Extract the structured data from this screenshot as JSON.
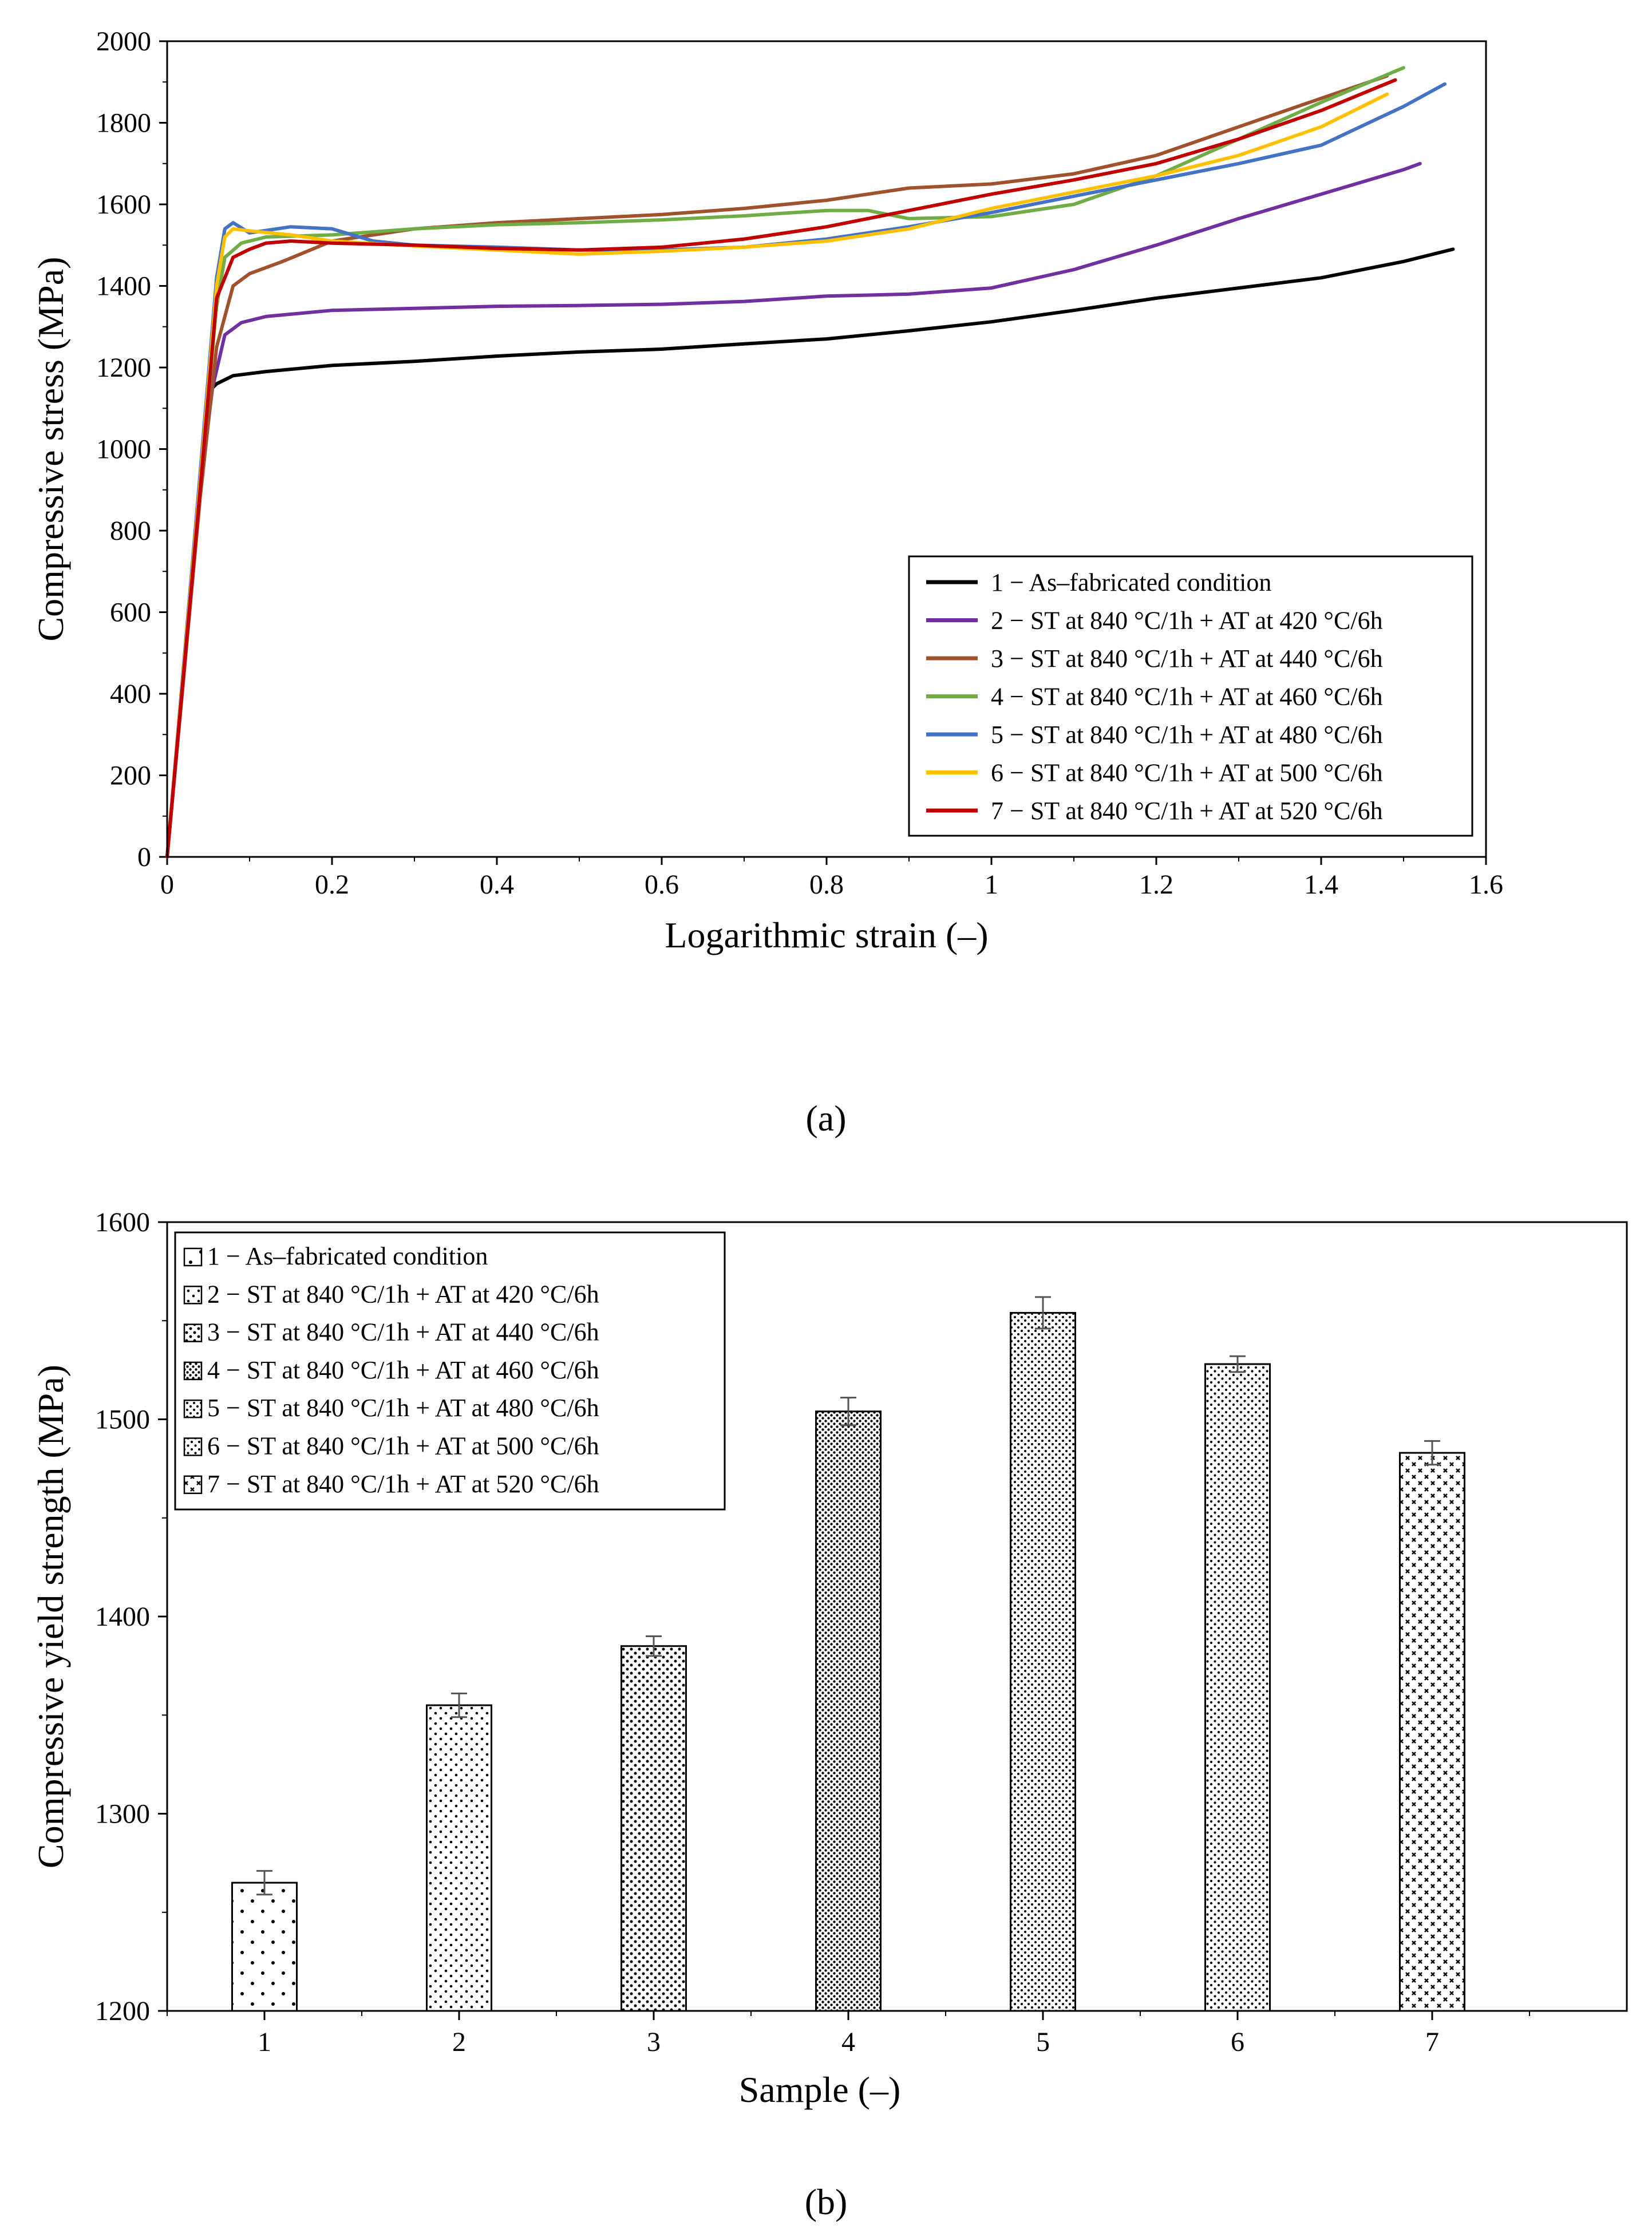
{
  "chart_data": [
    {
      "type": "line",
      "panel_label": "(a)",
      "xlabel": "Logarithmic strain (–)",
      "ylabel": "Compressive stress (MPa)",
      "xlim": [
        0,
        1.6
      ],
      "ylim": [
        0,
        2000
      ],
      "xticks": [
        0,
        0.2,
        0.4,
        0.6,
        0.8,
        1,
        1.2,
        1.4,
        1.6
      ],
      "xtick_labels": [
        "0",
        "0.2",
        "0.4",
        "0.6",
        "0.8",
        "1",
        "1.2",
        "1.4",
        "1.6"
      ],
      "yticks": [
        0,
        200,
        400,
        600,
        800,
        1000,
        1200,
        1400,
        1600,
        1800,
        2000
      ],
      "ytick_labels": [
        "0",
        "200",
        "400",
        "600",
        "800",
        "1000",
        "1200",
        "1400",
        "1600",
        "1800",
        "2000"
      ],
      "legend_position": "bottom-right",
      "series": [
        {
          "name": "1 − As–fabricated condition",
          "color": "#000000",
          "x": [
            0,
            0.02,
            0.04,
            0.05,
            0.06,
            0.08,
            0.12,
            0.2,
            0.3,
            0.4,
            0.5,
            0.6,
            0.7,
            0.8,
            0.9,
            1.0,
            1.1,
            1.2,
            1.3,
            1.4,
            1.5,
            1.56
          ],
          "y": [
            0,
            450,
            920,
            1140,
            1160,
            1180,
            1190,
            1205,
            1215,
            1228,
            1238,
            1245,
            1258,
            1270,
            1290,
            1312,
            1340,
            1370,
            1395,
            1420,
            1460,
            1490
          ]
        },
        {
          "name": "2 − ST at 840 °C/1h + AT at 420 °C/6h",
          "color": "#7030a0",
          "x": [
            0,
            0.02,
            0.04,
            0.055,
            0.07,
            0.09,
            0.12,
            0.2,
            0.3,
            0.4,
            0.5,
            0.6,
            0.7,
            0.8,
            0.9,
            1.0,
            1.1,
            1.2,
            1.3,
            1.4,
            1.5,
            1.52
          ],
          "y": [
            0,
            440,
            900,
            1150,
            1280,
            1310,
            1325,
            1340,
            1345,
            1350,
            1352,
            1355,
            1362,
            1375,
            1380,
            1395,
            1440,
            1500,
            1565,
            1625,
            1685,
            1700
          ]
        },
        {
          "name": "3 − ST at 840 °C/1h + AT at 440 °C/6h",
          "color": "#a0522d",
          "x": [
            0,
            0.02,
            0.04,
            0.06,
            0.08,
            0.1,
            0.14,
            0.2,
            0.3,
            0.4,
            0.5,
            0.6,
            0.7,
            0.8,
            0.9,
            1.0,
            1.1,
            1.2,
            1.3,
            1.4,
            1.48
          ],
          "y": [
            0,
            440,
            880,
            1250,
            1400,
            1430,
            1460,
            1510,
            1540,
            1555,
            1565,
            1575,
            1590,
            1610,
            1640,
            1650,
            1675,
            1720,
            1790,
            1860,
            1915
          ]
        },
        {
          "name": "4 − ST at 840 °C/1h + AT at 460 °C/6h",
          "color": "#70ad47",
          "x": [
            0,
            0.02,
            0.04,
            0.06,
            0.07,
            0.09,
            0.12,
            0.2,
            0.3,
            0.4,
            0.5,
            0.6,
            0.7,
            0.8,
            0.85,
            0.9,
            1.0,
            1.1,
            1.2,
            1.3,
            1.4,
            1.5
          ],
          "y": [
            0,
            460,
            920,
            1350,
            1470,
            1505,
            1520,
            1525,
            1540,
            1550,
            1555,
            1562,
            1572,
            1585,
            1585,
            1565,
            1570,
            1600,
            1670,
            1760,
            1850,
            1935
          ]
        },
        {
          "name": "5 − ST at 840 °C/1h + AT at 480 °C/6h",
          "color": "#4472c4",
          "x": [
            0,
            0.02,
            0.04,
            0.06,
            0.07,
            0.08,
            0.1,
            0.15,
            0.2,
            0.25,
            0.3,
            0.4,
            0.5,
            0.6,
            0.7,
            0.8,
            0.9,
            1.0,
            1.1,
            1.2,
            1.3,
            1.4,
            1.5,
            1.55
          ],
          "y": [
            0,
            470,
            940,
            1420,
            1540,
            1555,
            1530,
            1545,
            1540,
            1510,
            1500,
            1495,
            1488,
            1488,
            1495,
            1515,
            1545,
            1580,
            1620,
            1660,
            1700,
            1745,
            1840,
            1895
          ]
        },
        {
          "name": "6 − ST at 840 °C/1h + AT at 500 °C/6h",
          "color": "#ffc000",
          "x": [
            0,
            0.02,
            0.04,
            0.06,
            0.07,
            0.08,
            0.1,
            0.15,
            0.2,
            0.3,
            0.4,
            0.5,
            0.6,
            0.7,
            0.8,
            0.9,
            1.0,
            1.1,
            1.2,
            1.3,
            1.4,
            1.48
          ],
          "y": [
            0,
            460,
            920,
            1400,
            1520,
            1540,
            1535,
            1525,
            1510,
            1498,
            1488,
            1478,
            1485,
            1495,
            1510,
            1540,
            1590,
            1630,
            1670,
            1720,
            1790,
            1870
          ]
        },
        {
          "name": "7 − ST at 840 °C/1h + AT at 520 °C/6h",
          "color": "#c00000",
          "x": [
            0,
            0.02,
            0.04,
            0.06,
            0.08,
            0.1,
            0.12,
            0.15,
            0.2,
            0.3,
            0.4,
            0.5,
            0.6,
            0.7,
            0.8,
            0.9,
            1.0,
            1.1,
            1.2,
            1.3,
            1.4,
            1.49
          ],
          "y": [
            0,
            450,
            900,
            1370,
            1470,
            1490,
            1505,
            1510,
            1505,
            1500,
            1492,
            1488,
            1495,
            1515,
            1545,
            1585,
            1625,
            1660,
            1700,
            1760,
            1830,
            1905
          ]
        }
      ]
    },
    {
      "type": "bar",
      "panel_label": "(b)",
      "xlabel": "Sample (–)",
      "ylabel": "Compressive yield strength (MPa)",
      "categories": [
        "1",
        "2",
        "3",
        "4",
        "5",
        "6",
        "7"
      ],
      "values": [
        1265,
        1355,
        1385,
        1504,
        1554,
        1528,
        1483
      ],
      "errors": [
        6,
        6,
        5,
        7,
        8,
        4,
        6
      ],
      "ylim": [
        1200,
        1600
      ],
      "yticks": [
        1200,
        1300,
        1400,
        1500,
        1600
      ],
      "ytick_labels": [
        "1200",
        "1300",
        "1400",
        "1500",
        "1600"
      ],
      "legend_position": "top-left",
      "legend": [
        "1 − As–fabricated condition",
        "2 − ST at 840 °C/1h + AT at 420 °C/6h",
        "3 − ST at 840 °C/1h + AT at 440 °C/6h",
        "4 − ST at 840 °C/1h + AT at 460 °C/6h",
        "5 − ST at 840 °C/1h + AT at 480 °C/6h",
        "6 − ST at 840 °C/1h + AT at 500 °C/6h",
        "7 − ST at 840 °C/1h + AT at 520 °C/6h"
      ]
    }
  ]
}
